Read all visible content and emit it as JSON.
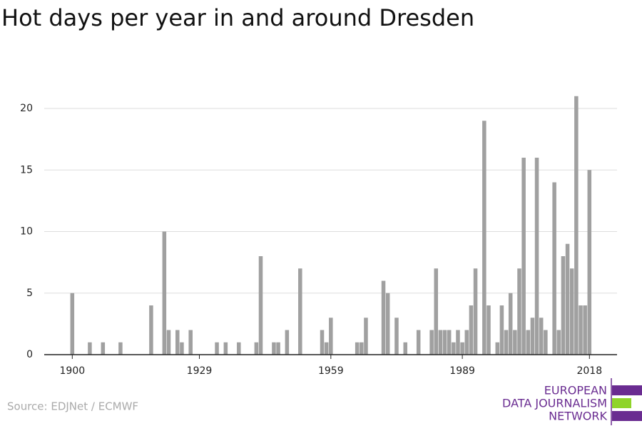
{
  "chart_data": {
    "type": "bar",
    "title": "Hot days per year in and around Dresden",
    "source": "Source: EDJNet / ECMWF",
    "logo": [
      "EUROPEAN",
      "DATA JOURNALISM",
      "NETWORK"
    ],
    "color": "#a0a0a0",
    "grid": true,
    "x": [
      1900,
      1901,
      1902,
      1903,
      1904,
      1905,
      1906,
      1907,
      1908,
      1909,
      1910,
      1911,
      1912,
      1913,
      1914,
      1915,
      1916,
      1917,
      1918,
      1919,
      1920,
      1921,
      1922,
      1923,
      1924,
      1925,
      1926,
      1927,
      1928,
      1929,
      1930,
      1931,
      1932,
      1933,
      1934,
      1935,
      1936,
      1937,
      1938,
      1939,
      1940,
      1941,
      1942,
      1943,
      1944,
      1945,
      1946,
      1947,
      1948,
      1949,
      1950,
      1951,
      1952,
      1953,
      1954,
      1955,
      1956,
      1957,
      1958,
      1959,
      1960,
      1961,
      1962,
      1963,
      1964,
      1965,
      1966,
      1967,
      1968,
      1969,
      1970,
      1971,
      1972,
      1973,
      1974,
      1975,
      1976,
      1977,
      1978,
      1979,
      1980,
      1981,
      1982,
      1983,
      1984,
      1985,
      1986,
      1987,
      1988,
      1989,
      1990,
      1991,
      1992,
      1993,
      1994,
      1995,
      1996,
      1997,
      1998,
      1999,
      2000,
      2001,
      2002,
      2003,
      2004,
      2005,
      2006,
      2007,
      2008,
      2009,
      2010,
      2011,
      2012,
      2013,
      2014,
      2015,
      2016,
      2017,
      2018
    ],
    "values": [
      5,
      0,
      0,
      0,
      1,
      0,
      0,
      1,
      0,
      0,
      0,
      1,
      0,
      0,
      0,
      0,
      0,
      0,
      4,
      0,
      0,
      10,
      2,
      0,
      2,
      1,
      0,
      2,
      0,
      0,
      0,
      0,
      0,
      1,
      0,
      1,
      0,
      0,
      1,
      0,
      0,
      0,
      1,
      8,
      0,
      0,
      1,
      1,
      0,
      2,
      0,
      0,
      7,
      0,
      0,
      0,
      0,
      2,
      1,
      3,
      0,
      0,
      0,
      0,
      0,
      1,
      1,
      3,
      0,
      0,
      0,
      6,
      5,
      0,
      3,
      0,
      1,
      0,
      0,
      2,
      0,
      0,
      2,
      7,
      2,
      2,
      2,
      1,
      2,
      1,
      2,
      4,
      7,
      0,
      19,
      4,
      0,
      1,
      4,
      2,
      5,
      2,
      7,
      16,
      2,
      3,
      16,
      3,
      2,
      0,
      14,
      2,
      8,
      9,
      7,
      21,
      4,
      4,
      15
    ],
    "xlim": [
      1893.6,
      2024.3
    ],
    "xticks": [
      1900,
      1929,
      1959,
      1989,
      2018
    ],
    "ylim": [
      0,
      22
    ],
    "yticks": [
      0,
      5,
      10,
      15,
      20
    ]
  }
}
